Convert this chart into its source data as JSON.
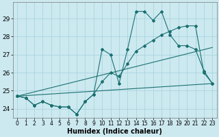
{
  "title": "",
  "xlabel": "Humidex (Indice chaleur)",
  "bg_color": "#cce9f0",
  "grid_color": "#aad4df",
  "line_color": "#1a7070",
  "xlim": [
    -0.5,
    23.5
  ],
  "ylim": [
    23.5,
    29.9
  ],
  "xticks": [
    0,
    1,
    2,
    3,
    4,
    5,
    6,
    7,
    8,
    9,
    10,
    11,
    12,
    13,
    14,
    15,
    16,
    17,
    18,
    19,
    20,
    21,
    22,
    23
  ],
  "yticks": [
    24,
    25,
    26,
    27,
    28,
    29
  ],
  "line1": [
    24.7,
    24.6,
    24.2,
    24.4,
    24.2,
    24.1,
    24.1,
    23.7,
    24.4,
    24.8,
    27.3,
    27.0,
    25.4,
    27.3,
    29.4,
    29.4,
    28.9,
    29.4,
    28.1,
    27.5,
    27.5,
    27.3,
    26.1,
    25.4
  ],
  "line2": [
    24.7,
    24.6,
    24.2,
    24.4,
    24.2,
    24.1,
    24.1,
    23.7,
    24.4,
    24.8,
    25.5,
    26.0,
    25.8,
    26.5,
    27.2,
    27.5,
    27.8,
    28.1,
    28.3,
    28.5,
    28.6,
    28.6,
    26.0,
    25.4
  ],
  "line3_x": [
    0,
    23
  ],
  "line3_y": [
    24.7,
    27.4
  ],
  "line4_x": [
    0,
    23
  ],
  "line4_y": [
    24.7,
    25.4
  ]
}
